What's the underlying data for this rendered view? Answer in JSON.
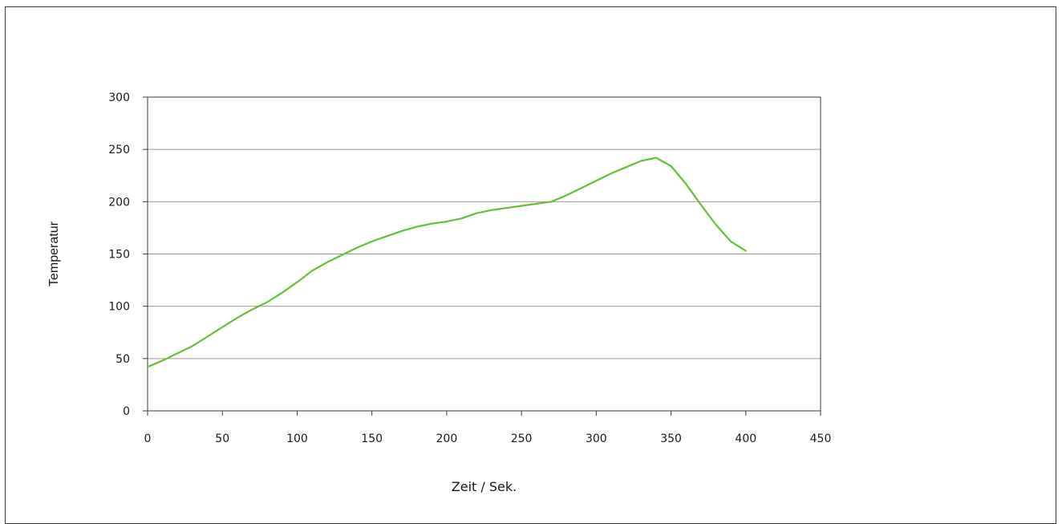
{
  "chart_data": {
    "type": "line",
    "title": "",
    "xlabel": "Zeit / Sek.",
    "ylabel": "Temperatur",
    "xlim": [
      0,
      450
    ],
    "ylim": [
      0,
      300
    ],
    "xticks": [
      0,
      50,
      100,
      150,
      200,
      250,
      300,
      350,
      400,
      450
    ],
    "yticks": [
      0,
      50,
      100,
      150,
      200,
      250,
      300
    ],
    "grid": "horizontal",
    "legend": "none",
    "series": [
      {
        "color": "#62c13a",
        "points": [
          [
            0,
            42
          ],
          [
            10,
            48
          ],
          [
            20,
            55
          ],
          [
            30,
            62
          ],
          [
            40,
            71
          ],
          [
            50,
            80
          ],
          [
            60,
            89
          ],
          [
            70,
            97
          ],
          [
            80,
            104
          ],
          [
            90,
            113
          ],
          [
            100,
            123
          ],
          [
            110,
            134
          ],
          [
            120,
            142
          ],
          [
            130,
            149
          ],
          [
            140,
            156
          ],
          [
            150,
            162
          ],
          [
            160,
            167
          ],
          [
            170,
            172
          ],
          [
            180,
            176
          ],
          [
            190,
            179
          ],
          [
            200,
            181
          ],
          [
            210,
            184
          ],
          [
            220,
            189
          ],
          [
            230,
            192
          ],
          [
            240,
            194
          ],
          [
            250,
            196
          ],
          [
            260,
            198
          ],
          [
            270,
            200
          ],
          [
            280,
            206
          ],
          [
            290,
            213
          ],
          [
            300,
            220
          ],
          [
            310,
            227
          ],
          [
            320,
            233
          ],
          [
            330,
            239
          ],
          [
            340,
            242
          ],
          [
            350,
            234
          ],
          [
            360,
            217
          ],
          [
            370,
            197
          ],
          [
            380,
            178
          ],
          [
            390,
            162
          ],
          [
            400,
            153
          ]
        ]
      }
    ]
  }
}
